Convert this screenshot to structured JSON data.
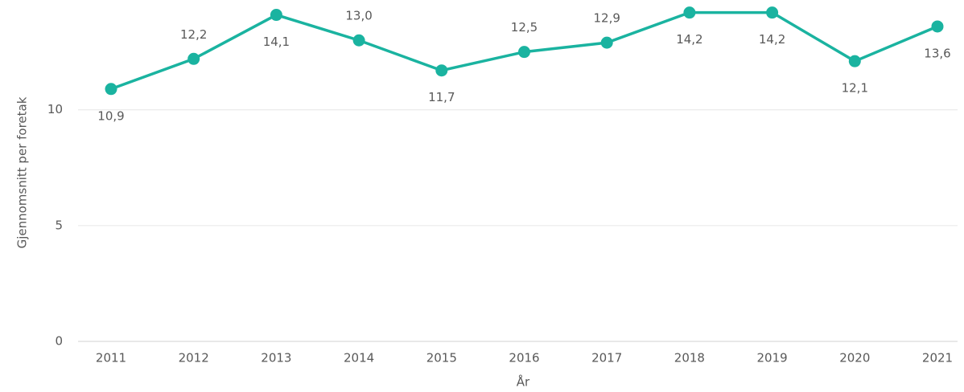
{
  "chart_data": {
    "type": "line",
    "x_label": "År",
    "y_label": "Gjennomsnitt per foretak",
    "categories": [
      "2011",
      "2012",
      "2013",
      "2014",
      "2015",
      "2016",
      "2017",
      "2018",
      "2019",
      "2020",
      "2021"
    ],
    "series": [
      {
        "color": "#1ab3a0",
        "values": [
          10.9,
          12.2,
          14.1,
          13.0,
          11.7,
          12.5,
          12.9,
          14.2,
          14.2,
          12.1,
          13.6
        ],
        "value_labels": [
          "10,9",
          "12,2",
          "14,1",
          "13,0",
          "11,7",
          "12,5",
          "12,9",
          "14,2",
          "14,2",
          "12,1",
          "13,6"
        ]
      }
    ],
    "ylim": [
      0,
      14.5
    ],
    "yticks": [
      0,
      5,
      10
    ],
    "grid": true
  }
}
